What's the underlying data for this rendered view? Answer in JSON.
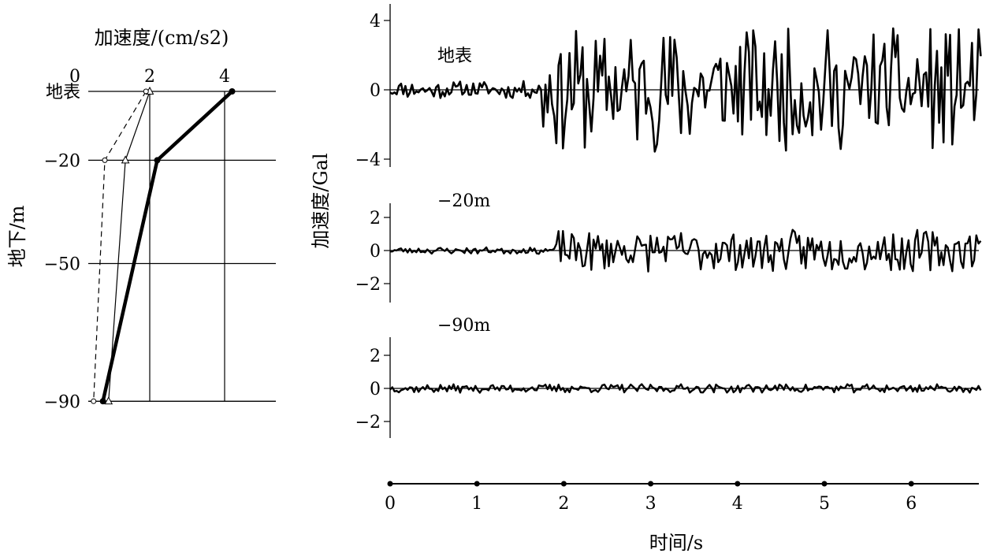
{
  "chart_data": [
    {
      "type": "line",
      "title": "",
      "xlabel": "加速度/(cm/s2)",
      "ylabel": "地下/m",
      "x_ticks": [
        "0",
        "2",
        "4"
      ],
      "xlim": [
        0,
        4.6
      ],
      "depth_ticks": [
        {
          "depth": 0,
          "label": "地表"
        },
        {
          "depth": 20,
          "label": "−20"
        },
        {
          "depth": 50,
          "label": "−50"
        },
        {
          "depth": 90,
          "label": "−90"
        }
      ],
      "series": [
        {
          "style": "thick-solid",
          "points": [
            [
              4.2,
              0
            ],
            [
              2.2,
              20
            ],
            [
              0.75,
              90
            ]
          ]
        },
        {
          "style": "thin-solid-triangle",
          "points": [
            [
              2.0,
              0
            ],
            [
              1.35,
              20
            ],
            [
              0.9,
              90
            ]
          ]
        },
        {
          "style": "dashed-circle",
          "points": [
            [
              1.9,
              0
            ],
            [
              0.8,
              20
            ],
            [
              0.5,
              90
            ]
          ]
        }
      ]
    },
    {
      "type": "line",
      "title": "",
      "xlabel": "时间/s",
      "ylabel": "加速度/Gal",
      "x_ticks": [
        "0",
        "1",
        "2",
        "3",
        "4",
        "5",
        "6"
      ],
      "xlim": [
        0,
        6.8
      ],
      "panels": [
        {
          "label": "地表",
          "ylim": [
            -4.8,
            4.6
          ],
          "y_ticks": [
            "4",
            "0",
            "−4"
          ],
          "tick_values": [
            4,
            0,
            -4
          ],
          "amp": 4.2,
          "seed": 11
        },
        {
          "label": "−20m",
          "ylim": [
            -3.0,
            3.0
          ],
          "y_ticks": [
            "2",
            "0",
            "−2"
          ],
          "tick_values": [
            2,
            0,
            -2
          ],
          "amp": 1.7,
          "seed": 23
        },
        {
          "label": "−90m",
          "ylim": [
            -3.0,
            3.0
          ],
          "y_ticks": [
            "2",
            "0",
            "−2"
          ],
          "tick_values": [
            2,
            0,
            -2
          ],
          "amp": 0.75,
          "seed": 37
        }
      ]
    }
  ]
}
